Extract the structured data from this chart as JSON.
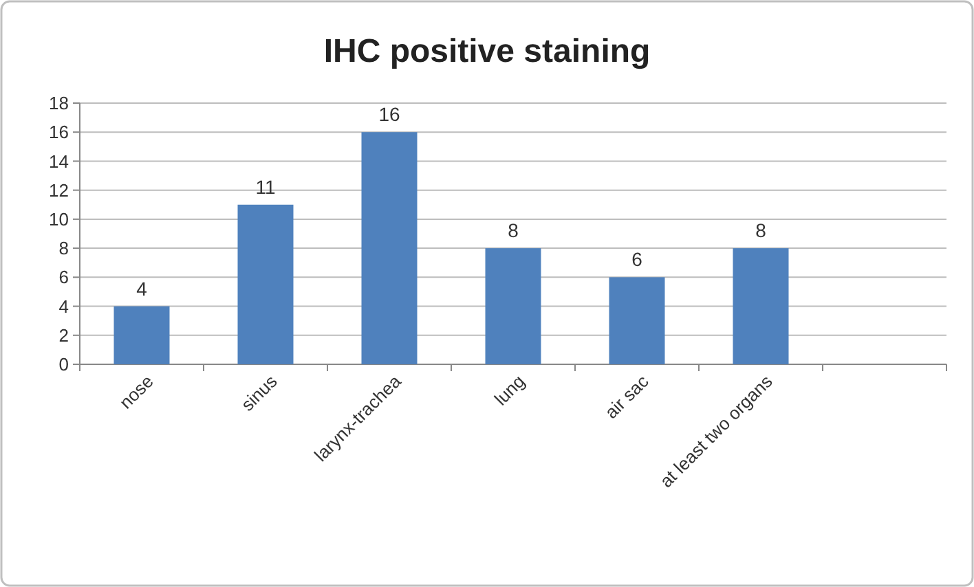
{
  "chart_data": {
    "type": "bar",
    "title": "IHC positive staining",
    "categories": [
      "nose",
      "sinus",
      "larynx-trachea",
      "lung",
      "air sac",
      "at least two organs",
      null
    ],
    "values": [
      4,
      11,
      16,
      8,
      6,
      8,
      null
    ],
    "color": "#4f81bd",
    "ylim": [
      0,
      18
    ],
    "yticks": [
      0,
      2,
      4,
      6,
      8,
      10,
      12,
      14,
      16,
      18
    ],
    "grid": "y",
    "data_labels": true
  }
}
